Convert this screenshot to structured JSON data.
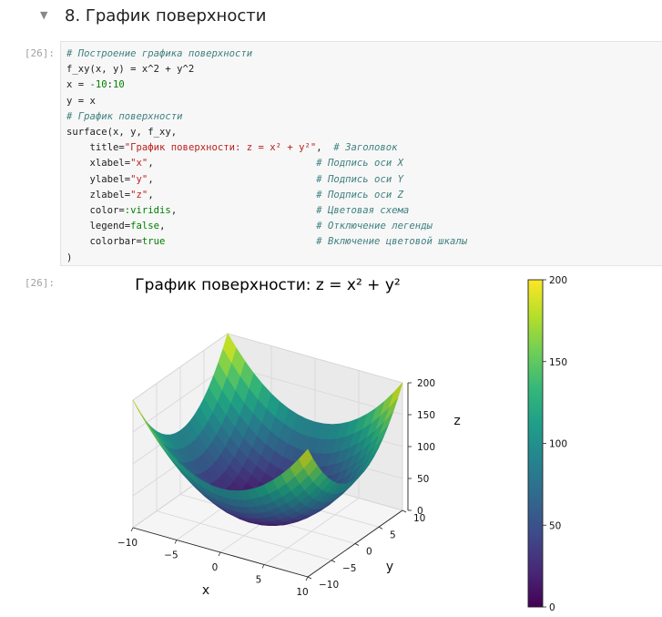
{
  "heading": {
    "arrow": "▼",
    "title": "8. График поверхности"
  },
  "code_cell": {
    "prompt": "[26]:",
    "lines": [
      [
        {
          "t": "# Построение графика поверхности",
          "c": "cm"
        }
      ],
      [
        {
          "t": "f_xy(x, y) = x^2 + y^2"
        }
      ],
      [
        {
          "t": "x = "
        },
        {
          "t": "-10",
          "c": "nu"
        },
        {
          "t": ":"
        },
        {
          "t": "10",
          "c": "nu"
        }
      ],
      [
        {
          "t": "y = x"
        }
      ],
      [
        {
          "t": "# График поверхности",
          "c": "cm"
        }
      ],
      [
        {
          "t": "surface(x, y, f_xy,"
        }
      ],
      [
        {
          "t": "    title="
        },
        {
          "t": "\"График поверхности: z = x² + y²\"",
          "c": "st"
        },
        {
          "t": ",  "
        },
        {
          "t": "# Заголовок",
          "c": "cm"
        }
      ],
      [
        {
          "t": "    xlabel="
        },
        {
          "t": "\"x\"",
          "c": "st"
        },
        {
          "t": ",                            "
        },
        {
          "t": "# Подпись оси X",
          "c": "cm"
        }
      ],
      [
        {
          "t": "    ylabel="
        },
        {
          "t": "\"y\"",
          "c": "st"
        },
        {
          "t": ",                            "
        },
        {
          "t": "# Подпись оси Y",
          "c": "cm"
        }
      ],
      [
        {
          "t": "    zlabel="
        },
        {
          "t": "\"z\"",
          "c": "st"
        },
        {
          "t": ",                            "
        },
        {
          "t": "# Подпись оси Z",
          "c": "cm"
        }
      ],
      [
        {
          "t": "    color="
        },
        {
          "t": ":viridis",
          "c": "nu"
        },
        {
          "t": ",                        "
        },
        {
          "t": "# Цветовая схема",
          "c": "cm"
        }
      ],
      [
        {
          "t": "    legend="
        },
        {
          "t": "false",
          "c": "kw"
        },
        {
          "t": ",                          "
        },
        {
          "t": "# Отключение легенды",
          "c": "cm"
        }
      ],
      [
        {
          "t": "    colorbar="
        },
        {
          "t": "true",
          "c": "kw"
        },
        {
          "t": "                          "
        },
        {
          "t": "# Включение цветовой шкалы",
          "c": "cm"
        }
      ],
      [
        {
          "t": ")"
        }
      ]
    ]
  },
  "output_cell": {
    "prompt": "[26]:"
  },
  "chart_data": {
    "type": "surface",
    "title": "График поверхности: z = x² + y²",
    "function": "x^2 + y^2",
    "x_range": [
      -10,
      10
    ],
    "y_range": [
      -10,
      10
    ],
    "z_range": [
      0,
      200
    ],
    "xlabel": "x",
    "ylabel": "y",
    "zlabel": "z",
    "x_ticks": [
      "−10",
      "−5",
      "0",
      "5",
      "10"
    ],
    "y_ticks": [
      "−10",
      "−5",
      "0",
      "5",
      "10"
    ],
    "z_ticks": [
      "0",
      "50",
      "100",
      "150",
      "200"
    ],
    "colormap": "viridis",
    "colorbar": {
      "min": 0,
      "max": 200,
      "ticks": [
        "0",
        "50",
        "100",
        "150",
        "200"
      ]
    },
    "legend": false,
    "grid": true
  }
}
